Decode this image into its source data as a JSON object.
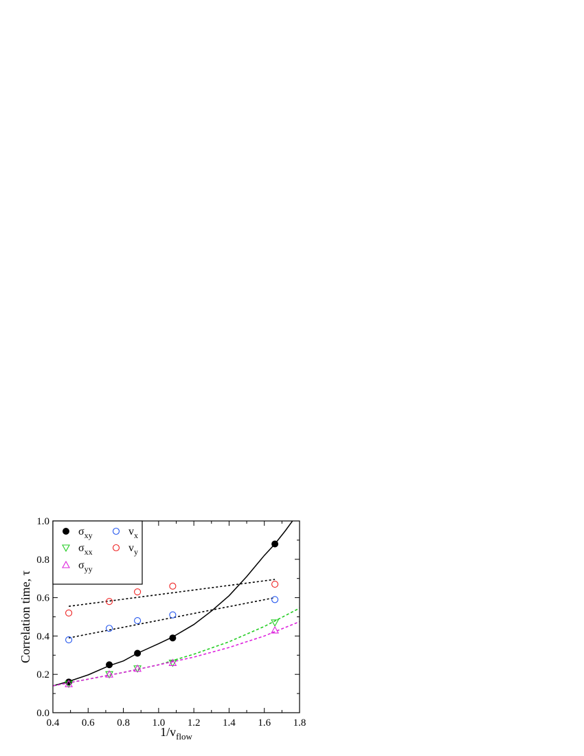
{
  "chart_data": {
    "type": "scatter",
    "xlabel": "1/v",
    "xlabel_sub": "flow",
    "ylabel": "Correlation time, τ",
    "xlim": [
      0.4,
      1.8
    ],
    "ylim": [
      0.0,
      1.0
    ],
    "xticks": [
      0.4,
      0.6,
      0.8,
      1.0,
      1.2,
      1.4,
      1.6,
      1.8
    ],
    "yticks": [
      0.0,
      0.2,
      0.4,
      0.6,
      0.8,
      1.0
    ],
    "xtick_labels": [
      "0.4",
      "0.6",
      "0.8",
      "1.0",
      "1.2",
      "1.4",
      "1.6",
      "1.8"
    ],
    "ytick_labels": [
      "0.0",
      "0.2",
      "0.4",
      "0.6",
      "0.8",
      "1.0"
    ],
    "grid": false,
    "legend_position": "top-left",
    "series": [
      {
        "name": "σ",
        "sub": "xy",
        "marker": "filled-circle",
        "color": "#000000",
        "x": [
          0.49,
          0.72,
          0.88,
          1.08,
          1.66
        ],
        "y": [
          0.16,
          0.25,
          0.31,
          0.39,
          0.88
        ]
      },
      {
        "name": "σ",
        "sub": "xx",
        "marker": "triangle-down",
        "color": "#22cc22",
        "x": [
          0.49,
          0.72,
          0.88,
          1.08,
          1.66
        ],
        "y": [
          0.15,
          0.2,
          0.23,
          0.26,
          0.47
        ]
      },
      {
        "name": "σ",
        "sub": "yy",
        "marker": "triangle-up",
        "color": "#dd22dd",
        "x": [
          0.49,
          0.72,
          0.88,
          1.08,
          1.66
        ],
        "y": [
          0.15,
          0.2,
          0.23,
          0.26,
          0.43
        ]
      },
      {
        "name": "v",
        "sub": "x",
        "marker": "open-circle",
        "color": "#2255ee",
        "x": [
          0.49,
          0.72,
          0.88,
          1.08,
          1.66
        ],
        "y": [
          0.38,
          0.44,
          0.48,
          0.51,
          0.59
        ]
      },
      {
        "name": "v",
        "sub": "y",
        "marker": "open-circle",
        "color": "#ee2222",
        "x": [
          0.49,
          0.72,
          0.88,
          1.08,
          1.66
        ],
        "y": [
          0.52,
          0.58,
          0.63,
          0.66,
          0.67
        ]
      }
    ],
    "fits": [
      {
        "for": "σxy",
        "style": "solid",
        "color": "#000000",
        "x": [
          0.4,
          0.49,
          0.6,
          0.72,
          0.8,
          0.88,
          1.0,
          1.08,
          1.2,
          1.3,
          1.4,
          1.5,
          1.6,
          1.66,
          1.72,
          1.76
        ],
        "y": [
          0.14,
          0.163,
          0.197,
          0.245,
          0.27,
          0.31,
          0.36,
          0.395,
          0.46,
          0.53,
          0.61,
          0.71,
          0.82,
          0.88,
          0.95,
          1.0
        ]
      },
      {
        "for": "σxx",
        "style": "dashed",
        "color": "#22cc22",
        "x": [
          0.4,
          0.6,
          0.8,
          1.0,
          1.2,
          1.4,
          1.6,
          1.8
        ],
        "y": [
          0.14,
          0.175,
          0.21,
          0.25,
          0.305,
          0.37,
          0.45,
          0.545
        ]
      },
      {
        "for": "σyy",
        "style": "dashed",
        "color": "#dd22dd",
        "x": [
          0.4,
          0.6,
          0.8,
          1.0,
          1.2,
          1.4,
          1.6,
          1.8
        ],
        "y": [
          0.14,
          0.175,
          0.21,
          0.25,
          0.29,
          0.34,
          0.4,
          0.475
        ]
      },
      {
        "for": "vx",
        "style": "dotted",
        "color": "#000000",
        "x": [
          0.49,
          1.66
        ],
        "y": [
          0.39,
          0.6
        ]
      },
      {
        "for": "vy",
        "style": "dotted",
        "color": "#000000",
        "x": [
          0.49,
          1.66
        ],
        "y": [
          0.555,
          0.695
        ]
      }
    ]
  }
}
